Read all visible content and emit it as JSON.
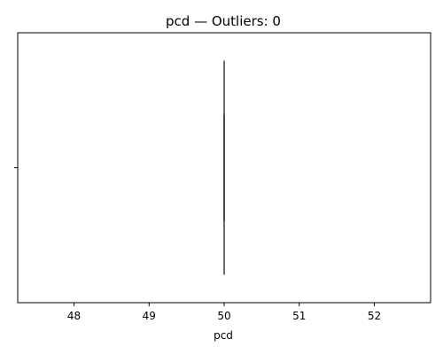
{
  "chart_data": {
    "type": "boxplot",
    "orientation": "horizontal",
    "title": "pcd — Outliers: 0",
    "xlabel": "pcd",
    "ylabel": "",
    "xlim": [
      47.25,
      52.75
    ],
    "xticks": [
      48,
      49,
      50,
      51,
      52
    ],
    "xtick_labels": [
      "48",
      "49",
      "50",
      "51",
      "52"
    ],
    "grid": false,
    "legend": "none",
    "box": {
      "name": "pcd",
      "min": 50,
      "q1": 50,
      "median": 50,
      "q3": 50,
      "max": 50,
      "outliers": []
    },
    "colors": {
      "box_edge": "#3f3f3f",
      "axes": "#000000"
    }
  }
}
